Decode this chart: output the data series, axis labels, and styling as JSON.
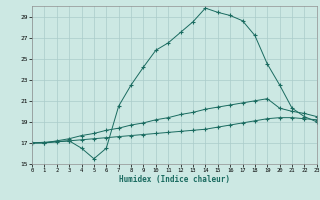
{
  "xlabel": "Humidex (Indice chaleur)",
  "bg_color": "#cce8e3",
  "grid_color": "#aaccca",
  "line_color": "#1a6b60",
  "xlim": [
    0,
    23
  ],
  "ylim": [
    15,
    30
  ],
  "yticks": [
    15,
    17,
    19,
    21,
    23,
    25,
    27,
    29
  ],
  "xticks": [
    0,
    1,
    2,
    3,
    4,
    5,
    6,
    7,
    8,
    9,
    10,
    11,
    12,
    13,
    14,
    15,
    16,
    17,
    18,
    19,
    20,
    21,
    22,
    23
  ],
  "line_bottom_x": [
    0,
    1,
    2,
    3,
    4,
    5,
    6,
    7,
    8,
    9,
    10,
    11,
    12,
    13,
    14,
    15,
    16,
    17,
    18,
    19,
    20,
    21,
    22,
    23
  ],
  "line_bottom_y": [
    17.0,
    17.0,
    17.1,
    17.2,
    17.3,
    17.4,
    17.5,
    17.6,
    17.7,
    17.8,
    17.9,
    18.0,
    18.1,
    18.2,
    18.3,
    18.5,
    18.7,
    18.9,
    19.1,
    19.3,
    19.4,
    19.4,
    19.3,
    19.2
  ],
  "line_mid_x": [
    0,
    1,
    2,
    3,
    4,
    5,
    6,
    7,
    8,
    9,
    10,
    11,
    12,
    13,
    14,
    15,
    16,
    17,
    18,
    19,
    20,
    21,
    22,
    23
  ],
  "line_mid_y": [
    17.0,
    17.0,
    17.2,
    17.4,
    17.7,
    17.9,
    18.2,
    18.4,
    18.7,
    18.9,
    19.2,
    19.4,
    19.7,
    19.9,
    20.2,
    20.4,
    20.6,
    20.8,
    21.0,
    21.2,
    20.3,
    20.0,
    19.8,
    19.5
  ],
  "line_top_x": [
    0,
    3,
    4,
    5,
    6,
    7,
    8,
    9,
    10,
    11,
    12,
    13,
    14,
    15,
    16,
    17,
    18,
    19,
    20,
    21,
    22,
    23
  ],
  "line_top_y": [
    17.0,
    17.2,
    16.5,
    15.5,
    16.5,
    20.5,
    22.5,
    24.2,
    25.8,
    26.5,
    27.5,
    28.5,
    29.8,
    29.4,
    29.1,
    28.6,
    27.2,
    24.5,
    22.5,
    20.3,
    19.5,
    19.0
  ]
}
